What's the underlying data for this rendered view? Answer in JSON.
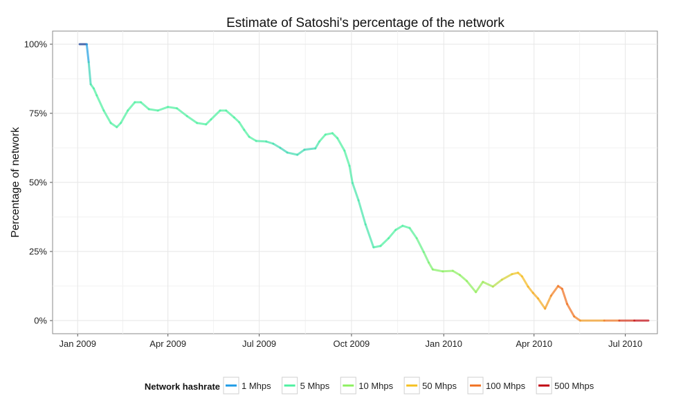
{
  "chart_data": {
    "type": "line",
    "title": "Estimate of Satoshi's percentage of the network",
    "xlabel": "",
    "ylabel": "Percentage of network",
    "xlim": [
      "2008-12-07",
      "2010-08-02"
    ],
    "ylim": [
      -4.75,
      104.75
    ],
    "grid": true,
    "x_ticks": [
      {
        "date": "2009-01-01",
        "label": "Jan 2009"
      },
      {
        "date": "2009-04-01",
        "label": "Apr 2009"
      },
      {
        "date": "2009-07-01",
        "label": "Jul 2009"
      },
      {
        "date": "2009-10-01",
        "label": "Oct 2009"
      },
      {
        "date": "2010-01-01",
        "label": "Jan 2010"
      },
      {
        "date": "2010-04-01",
        "label": "Apr 2010"
      },
      {
        "date": "2010-07-01",
        "label": "Jul 2010"
      }
    ],
    "y_ticks": [
      {
        "value": 0,
        "label": "0%"
      },
      {
        "value": 25,
        "label": "25%"
      },
      {
        "value": 50,
        "label": "50%"
      },
      {
        "value": 75,
        "label": "75%"
      },
      {
        "value": 100,
        "label": "100%"
      }
    ],
    "legend": {
      "title": "Network hashrate",
      "placement": "bottom",
      "entries": [
        {
          "label": "1 Mhps",
          "value": 1,
          "color": "#1e9be6"
        },
        {
          "label": "5 Mhps",
          "value": 5,
          "color": "#4ef0a0"
        },
        {
          "label": "10 Mhps",
          "value": 10,
          "color": "#8cf060"
        },
        {
          "label": "50 Mhps",
          "value": 50,
          "color": "#f5c020"
        },
        {
          "label": "100 Mhps",
          "value": 100,
          "color": "#f07020"
        },
        {
          "label": "500 Mhps",
          "value": 500,
          "color": "#c00010"
        }
      ],
      "low_color": "#000a70"
    },
    "series": [
      {
        "points": [
          [
            "2009-01-03",
            100,
            0.3
          ],
          [
            "2009-01-10",
            100,
            0.6
          ],
          [
            "2009-01-12",
            93.5,
            2
          ],
          [
            "2009-01-14",
            85.5,
            4
          ],
          [
            "2009-01-17",
            84,
            5
          ],
          [
            "2009-01-20",
            81.5,
            5
          ],
          [
            "2009-01-27",
            76,
            5
          ],
          [
            "2009-02-03",
            71.5,
            5
          ],
          [
            "2009-02-09",
            70,
            5
          ],
          [
            "2009-02-13",
            71.5,
            5
          ],
          [
            "2009-02-20",
            76,
            5
          ],
          [
            "2009-02-27",
            79,
            5
          ],
          [
            "2009-03-05",
            79,
            5
          ],
          [
            "2009-03-13",
            76.5,
            5
          ],
          [
            "2009-03-22",
            76,
            5
          ],
          [
            "2009-04-01",
            77.3,
            5
          ],
          [
            "2009-04-10",
            76.8,
            5
          ],
          [
            "2009-04-20",
            74,
            5
          ],
          [
            "2009-04-30",
            71.5,
            5
          ],
          [
            "2009-05-09",
            71,
            5
          ],
          [
            "2009-05-14",
            72.8,
            5
          ],
          [
            "2009-05-23",
            76,
            5
          ],
          [
            "2009-05-29",
            76,
            5
          ],
          [
            "2009-06-06",
            73.5,
            5
          ],
          [
            "2009-06-11",
            71.8,
            5
          ],
          [
            "2009-06-16",
            69,
            5
          ],
          [
            "2009-06-21",
            66.5,
            5
          ],
          [
            "2009-06-28",
            65,
            5
          ],
          [
            "2009-07-08",
            64.8,
            4
          ],
          [
            "2009-07-15",
            64,
            4
          ],
          [
            "2009-07-22",
            62.5,
            3
          ],
          [
            "2009-07-29",
            60.8,
            3
          ],
          [
            "2009-08-08",
            60,
            4
          ],
          [
            "2009-08-15",
            61.8,
            3
          ],
          [
            "2009-08-26",
            62.3,
            3
          ],
          [
            "2009-08-30",
            64.8,
            5
          ],
          [
            "2009-09-05",
            67.3,
            5
          ],
          [
            "2009-09-12",
            67.8,
            5
          ],
          [
            "2009-09-17",
            66,
            5
          ],
          [
            "2009-09-24",
            61.5,
            5
          ],
          [
            "2009-09-29",
            56,
            5
          ],
          [
            "2009-10-02",
            49.8,
            4
          ],
          [
            "2009-10-08",
            43.5,
            4
          ],
          [
            "2009-10-15",
            34.8,
            4
          ],
          [
            "2009-10-23",
            26.5,
            4
          ],
          [
            "2009-10-30",
            27,
            5
          ],
          [
            "2009-11-07",
            29.8,
            5
          ],
          [
            "2009-11-14",
            32.8,
            5
          ],
          [
            "2009-11-21",
            34.3,
            5
          ],
          [
            "2009-11-28",
            33.5,
            5
          ],
          [
            "2009-12-05",
            29.8,
            6
          ],
          [
            "2009-12-12",
            24.8,
            7
          ],
          [
            "2009-12-17",
            21,
            8
          ],
          [
            "2009-12-21",
            18.5,
            9
          ],
          [
            "2009-12-31",
            17.8,
            10
          ],
          [
            "2010-01-10",
            18,
            10
          ],
          [
            "2010-01-17",
            16.5,
            10
          ],
          [
            "2010-01-24",
            14.3,
            10
          ],
          [
            "2010-02-02",
            10.3,
            11
          ],
          [
            "2010-02-09",
            14,
            12
          ],
          [
            "2010-02-19",
            12.3,
            15
          ],
          [
            "2010-02-28",
            14.8,
            25
          ],
          [
            "2010-03-10",
            16.8,
            40
          ],
          [
            "2010-03-16",
            17.3,
            50
          ],
          [
            "2010-03-20",
            16,
            50
          ],
          [
            "2010-03-26",
            12.3,
            55
          ],
          [
            "2010-03-31",
            10,
            60
          ],
          [
            "2010-04-05",
            8,
            60
          ],
          [
            "2010-04-12",
            4.3,
            60
          ],
          [
            "2010-04-18",
            9,
            80
          ],
          [
            "2010-04-25",
            12.5,
            100
          ],
          [
            "2010-04-29",
            11.5,
            100
          ],
          [
            "2010-05-04",
            6,
            100
          ],
          [
            "2010-05-11",
            1.5,
            100
          ],
          [
            "2010-05-17",
            0,
            80
          ],
          [
            "2010-06-10",
            0,
            60
          ],
          [
            "2010-06-25",
            0,
            150
          ],
          [
            "2010-07-10",
            0,
            400
          ],
          [
            "2010-07-24",
            0,
            500
          ]
        ]
      }
    ]
  }
}
